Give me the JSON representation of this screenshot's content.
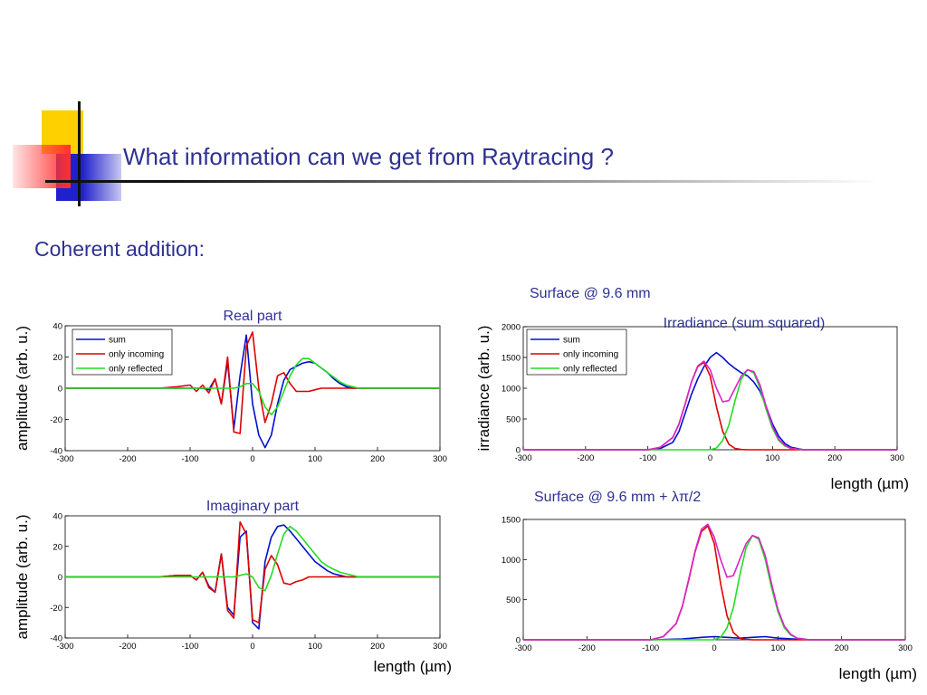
{
  "slide": {
    "title": "What information can we get from Raytracing ?",
    "subheading": "Coherent addition:",
    "surface_label_1": "Surface @ 9.6 mm",
    "surface_label_2": "Surface @ 9.6 mm + λπ/2"
  },
  "colors": {
    "title_text": "#2e3192",
    "sum": "#0010cc",
    "only_incoming": "#dd0000",
    "only_reflected": "#22dd22",
    "sum_squared": "#dd22cc",
    "logo_yellow": "#ffd000",
    "logo_blue": "#2020cc",
    "logo_red": "#ff3333"
  },
  "chart_data": [
    {
      "id": "real",
      "type": "line",
      "title": "Real part",
      "xlabel": "",
      "ylabel": "amplitude (arb. u.)",
      "xlim": [
        -300,
        300
      ],
      "ylim": [
        -40,
        40
      ],
      "xticks": [
        -300,
        -200,
        -100,
        0,
        100,
        200,
        300
      ],
      "yticks": [
        -40,
        -20,
        0,
        20,
        40
      ],
      "legend": [
        "sum",
        "only incoming",
        "only reflected"
      ],
      "legend_position": "top-left",
      "series": [
        {
          "name": "sum",
          "color": "#0010cc",
          "x": [
            -300,
            -250,
            -200,
            -150,
            -120,
            -100,
            -90,
            -80,
            -70,
            -60,
            -50,
            -40,
            -30,
            -20,
            -10,
            0,
            10,
            20,
            30,
            40,
            50,
            60,
            70,
            80,
            90,
            100,
            110,
            120,
            130,
            140,
            150,
            160,
            170,
            180,
            200,
            220,
            250,
            300
          ],
          "y": [
            0,
            0,
            0,
            0,
            0,
            0,
            0,
            0,
            -1,
            6,
            -10,
            17,
            -26,
            8,
            34,
            -10,
            -30,
            -38,
            -30,
            -10,
            5,
            12,
            14,
            16,
            17,
            16,
            13,
            10,
            6,
            3,
            1,
            0,
            0,
            0,
            0,
            0,
            0,
            0
          ]
        },
        {
          "name": "only incoming",
          "color": "#dd0000",
          "x": [
            -300,
            -250,
            -200,
            -150,
            -120,
            -100,
            -90,
            -80,
            -70,
            -60,
            -50,
            -40,
            -30,
            -20,
            -10,
            0,
            10,
            20,
            30,
            40,
            50,
            60,
            70,
            80,
            90,
            100,
            110,
            120,
            130,
            140,
            150,
            160,
            170,
            180,
            200,
            220,
            250,
            300
          ],
          "y": [
            0,
            0,
            0,
            0,
            1,
            2,
            -2,
            2,
            -3,
            6,
            -10,
            20,
            -28,
            -29,
            27,
            36,
            0,
            -22,
            -10,
            8,
            10,
            3,
            -2,
            -2,
            -2,
            -1,
            0,
            0,
            0,
            0,
            0,
            0,
            0,
            0,
            0,
            0,
            0,
            0
          ]
        },
        {
          "name": "only reflected",
          "color": "#22dd22",
          "x": [
            -300,
            -250,
            -200,
            -150,
            -120,
            -100,
            -90,
            -80,
            -70,
            -60,
            -50,
            -40,
            -30,
            -20,
            -10,
            0,
            10,
            20,
            30,
            40,
            50,
            60,
            70,
            80,
            90,
            100,
            110,
            120,
            130,
            140,
            150,
            160,
            170,
            180,
            200,
            220,
            250,
            300
          ],
          "y": [
            0,
            0,
            0,
            0,
            0,
            0,
            0,
            0,
            0,
            0,
            0,
            0,
            0,
            1,
            3,
            3,
            -2,
            -12,
            -17,
            -12,
            -2,
            8,
            15,
            19,
            19,
            16,
            13,
            10,
            7,
            4,
            2,
            1,
            0,
            0,
            0,
            0,
            0,
            0
          ]
        }
      ]
    },
    {
      "id": "imag",
      "type": "line",
      "title": "Imaginary part",
      "xlabel": "length (µm)",
      "ylabel": "amplitude (arb. u.)",
      "xlim": [
        -300,
        300
      ],
      "ylim": [
        -40,
        40
      ],
      "xticks": [
        -300,
        -200,
        -100,
        0,
        100,
        200,
        300
      ],
      "yticks": [
        -40,
        -20,
        0,
        20,
        40
      ],
      "series": [
        {
          "name": "sum",
          "color": "#0010cc",
          "x": [
            -300,
            -250,
            -200,
            -150,
            -120,
            -100,
            -90,
            -80,
            -70,
            -60,
            -50,
            -40,
            -30,
            -20,
            -10,
            0,
            10,
            20,
            30,
            40,
            50,
            60,
            70,
            80,
            90,
            100,
            110,
            120,
            130,
            140,
            150,
            160,
            170,
            180,
            200,
            220,
            250,
            300
          ],
          "y": [
            0,
            0,
            0,
            0,
            1,
            1,
            -2,
            3,
            -6,
            -10,
            15,
            -20,
            -25,
            26,
            30,
            -30,
            -34,
            10,
            26,
            33,
            34,
            30,
            25,
            20,
            15,
            10,
            7,
            4,
            2,
            1,
            0,
            0,
            0,
            0,
            0,
            0,
            0,
            0
          ]
        },
        {
          "name": "only incoming",
          "color": "#dd0000",
          "x": [
            -300,
            -250,
            -200,
            -150,
            -120,
            -100,
            -90,
            -80,
            -70,
            -60,
            -50,
            -40,
            -30,
            -20,
            -10,
            0,
            10,
            20,
            30,
            40,
            50,
            60,
            70,
            80,
            90,
            100,
            110,
            120,
            130,
            140,
            150,
            160,
            170,
            180,
            200,
            220,
            250,
            300
          ],
          "y": [
            0,
            0,
            0,
            0,
            1,
            1,
            -2,
            3,
            -7,
            -10,
            15,
            -22,
            -27,
            36,
            28,
            -28,
            -30,
            5,
            14,
            8,
            -4,
            -5,
            -3,
            -2,
            0,
            0,
            0,
            0,
            0,
            0,
            0,
            0,
            0,
            0,
            0,
            0,
            0,
            0
          ]
        },
        {
          "name": "only reflected",
          "color": "#22dd22",
          "x": [
            -300,
            -250,
            -200,
            -150,
            -120,
            -100,
            -90,
            -80,
            -70,
            -60,
            -50,
            -40,
            -30,
            -20,
            -10,
            0,
            10,
            20,
            30,
            40,
            50,
            60,
            70,
            80,
            90,
            100,
            110,
            120,
            130,
            140,
            150,
            160,
            170,
            180,
            200,
            220,
            250,
            300
          ],
          "y": [
            0,
            0,
            0,
            0,
            0,
            0,
            0,
            0,
            0,
            0,
            0,
            0,
            0,
            1,
            2,
            0,
            -7,
            -9,
            1,
            15,
            28,
            33,
            30,
            25,
            20,
            15,
            10,
            7,
            5,
            3,
            2,
            1,
            0,
            0,
            0,
            0,
            0,
            0
          ]
        }
      ]
    },
    {
      "id": "irr1",
      "type": "line",
      "title": "Irradiance (sum squared)",
      "xlabel": "length (µm)",
      "ylabel": "irradiance (arb. u.)",
      "xlim": [
        -300,
        300
      ],
      "ylim": [
        0,
        2000
      ],
      "xticks": [
        -300,
        -200,
        -100,
        0,
        100,
        200,
        300
      ],
      "yticks": [
        0,
        500,
        1000,
        1500,
        2000
      ],
      "legend": [
        "sum",
        "only incoming",
        "only reflected"
      ],
      "legend_position": "top-left",
      "series": [
        {
          "name": "sum",
          "color": "#0010cc",
          "x": [
            -300,
            -150,
            -100,
            -80,
            -60,
            -50,
            -40,
            -30,
            -20,
            -10,
            0,
            10,
            20,
            30,
            40,
            50,
            60,
            70,
            80,
            90,
            100,
            110,
            120,
            130,
            150,
            200,
            300
          ],
          "y": [
            0,
            0,
            0,
            20,
            120,
            300,
            600,
            900,
            1150,
            1350,
            1500,
            1580,
            1500,
            1400,
            1320,
            1250,
            1200,
            1100,
            950,
            700,
            420,
            220,
            100,
            40,
            0,
            0,
            0
          ]
        },
        {
          "name": "only incoming",
          "color": "#dd0000",
          "x": [
            -300,
            -150,
            -100,
            -80,
            -60,
            -50,
            -40,
            -30,
            -20,
            -10,
            0,
            10,
            20,
            30,
            40,
            50,
            60,
            100,
            150,
            300
          ],
          "y": [
            0,
            0,
            0,
            40,
            200,
            420,
            750,
            1100,
            1350,
            1420,
            1200,
            700,
            300,
            90,
            20,
            5,
            0,
            0,
            0,
            0
          ]
        },
        {
          "name": "only reflected",
          "color": "#22dd22",
          "x": [
            -300,
            -50,
            0,
            10,
            20,
            30,
            40,
            50,
            60,
            70,
            80,
            90,
            100,
            110,
            120,
            130,
            150,
            200,
            300
          ],
          "y": [
            0,
            0,
            0,
            30,
            150,
            400,
            800,
            1150,
            1300,
            1250,
            1000,
            650,
            350,
            150,
            60,
            20,
            0,
            0,
            0
          ]
        },
        {
          "name": "",
          "color": "#dd22cc",
          "x": [
            -300,
            -150,
            -100,
            -80,
            -60,
            -50,
            -40,
            -30,
            -20,
            -10,
            0,
            10,
            20,
            30,
            40,
            50,
            60,
            70,
            80,
            90,
            100,
            110,
            120,
            130,
            150,
            200,
            300
          ],
          "y": [
            0,
            0,
            0,
            40,
            200,
            420,
            750,
            1100,
            1360,
            1440,
            1300,
            1000,
            780,
            800,
            1000,
            1200,
            1300,
            1270,
            1050,
            700,
            380,
            170,
            70,
            20,
            0,
            0,
            0
          ]
        }
      ]
    },
    {
      "id": "irr2",
      "type": "line",
      "title": "",
      "xlabel": "length (µm)",
      "ylabel": "",
      "xlim": [
        -300,
        300
      ],
      "ylim": [
        0,
        1500
      ],
      "xticks": [
        -300,
        -200,
        -100,
        0,
        100,
        200,
        300
      ],
      "yticks": [
        0,
        500,
        1000,
        1500
      ],
      "series": [
        {
          "name": "",
          "color": "#0010cc",
          "x": [
            -300,
            -100,
            -50,
            -20,
            0,
            20,
            40,
            60,
            80,
            100,
            150,
            300
          ],
          "y": [
            0,
            0,
            10,
            30,
            40,
            30,
            20,
            30,
            40,
            20,
            0,
            0
          ]
        },
        {
          "name": "",
          "color": "#dd0000",
          "x": [
            -300,
            -150,
            -100,
            -80,
            -60,
            -50,
            -40,
            -30,
            -20,
            -10,
            0,
            10,
            20,
            30,
            40,
            50,
            60,
            100,
            150,
            300
          ],
          "y": [
            0,
            0,
            0,
            40,
            200,
            420,
            750,
            1100,
            1350,
            1420,
            1200,
            700,
            300,
            90,
            20,
            5,
            0,
            0,
            0,
            0
          ]
        },
        {
          "name": "",
          "color": "#22dd22",
          "x": [
            -300,
            -50,
            0,
            10,
            20,
            30,
            40,
            50,
            60,
            70,
            80,
            90,
            100,
            110,
            120,
            130,
            150,
            200,
            300
          ],
          "y": [
            0,
            0,
            0,
            30,
            150,
            400,
            800,
            1150,
            1300,
            1250,
            1000,
            650,
            350,
            150,
            60,
            20,
            0,
            0,
            0
          ]
        },
        {
          "name": "",
          "color": "#dd22cc",
          "x": [
            -300,
            -150,
            -100,
            -80,
            -60,
            -50,
            -40,
            -30,
            -20,
            -10,
            0,
            10,
            20,
            30,
            40,
            50,
            60,
            70,
            80,
            90,
            100,
            110,
            120,
            130,
            150,
            200,
            300
          ],
          "y": [
            0,
            0,
            0,
            40,
            200,
            420,
            760,
            1110,
            1380,
            1440,
            1280,
            1000,
            780,
            800,
            1000,
            1200,
            1300,
            1270,
            1050,
            700,
            380,
            170,
            70,
            20,
            0,
            0,
            0
          ]
        }
      ]
    }
  ]
}
